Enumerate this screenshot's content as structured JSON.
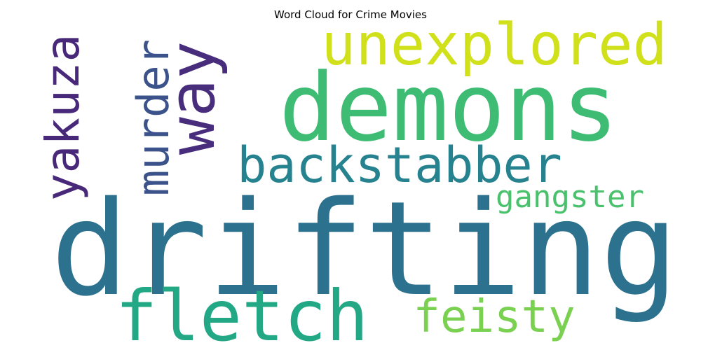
{
  "chart_data": {
    "type": "wordcloud",
    "title": "Word Cloud for Crime Movies",
    "words": [
      {
        "text": "drifting",
        "color": "#2c728e"
      },
      {
        "text": "demons",
        "color": "#3fbc73"
      },
      {
        "text": "fletch",
        "color": "#22a884"
      },
      {
        "text": "unexplored",
        "color": "#d0e11c"
      },
      {
        "text": "way",
        "color": "#472d7b"
      },
      {
        "text": "backstabber",
        "color": "#26828e"
      },
      {
        "text": "murder",
        "color": "#3b528b"
      },
      {
        "text": "yakuza",
        "color": "#482878"
      },
      {
        "text": "feisty",
        "color": "#7ad151"
      },
      {
        "text": "gangster",
        "color": "#4ac16d"
      }
    ]
  }
}
